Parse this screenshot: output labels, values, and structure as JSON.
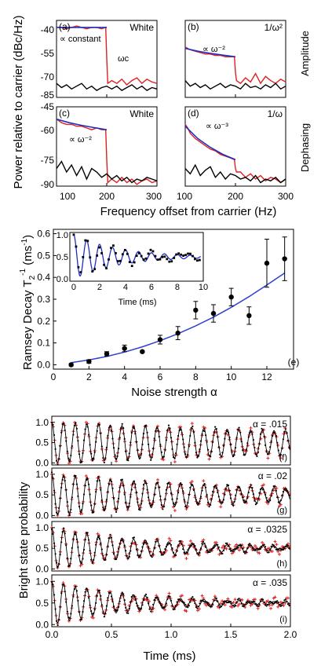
{
  "spectra": {
    "ylabel": "Power relative to carrier (dBc/Hz)",
    "xlabel": "Frequency offset from carrier (Hz)",
    "row_labels": [
      "Amplitude",
      "Dephasing"
    ],
    "x_ticks": [
      "100",
      "200",
      "300"
    ],
    "left_yticks_top": [
      "-40",
      "-55",
      "-70",
      "-85"
    ],
    "left_yticks_bottom": [
      "-45",
      "-60",
      "-75",
      "-90"
    ]
  },
  "ramsey": {
    "ylabel": "Ramsey Decay T",
    "ylabel_sub": "2",
    "ylabel_sup": "-1",
    "ylabel_unit": "(ms",
    "ylabel_unit_sup": "-1",
    "ylabel_close": ")",
    "xlabel": "Noise strength α",
    "x_ticks": [
      "0",
      "2",
      "4",
      "6",
      "8",
      "10",
      "12"
    ],
    "y_ticks": [
      "0.0",
      "0.1",
      "0.2",
      "0.3",
      "0.4",
      "0.5",
      "0.6"
    ],
    "panel_label": "(e)",
    "inset": {
      "xlabel": "Time (ms)",
      "x_ticks": [
        "0",
        "2",
        "4",
        "6",
        "8",
        "10"
      ],
      "y_ticks": [
        "0.0",
        "0.5",
        "1.0"
      ]
    }
  },
  "timeseries": {
    "ylabel": "Bright state probability",
    "xlabel": "Time (ms)",
    "x_ticks": [
      "0.0",
      "0.5",
      "1.0",
      "1.5",
      "2.0"
    ],
    "y_ticks": [
      "0.0",
      "0.5",
      "1.0"
    ]
  },
  "chart_data": [
    {
      "id": "a",
      "type": "line",
      "panel_label": "(a)",
      "title": "White",
      "annotations": [
        "∝ constant",
        "ωc"
      ],
      "xlim": [
        100,
        300
      ],
      "ylim": [
        -90,
        -35
      ],
      "series": [
        {
          "color": "#e02020",
          "x": [
            100,
            110,
            120,
            130,
            140,
            150,
            160,
            170,
            180,
            190,
            198,
            200,
            202,
            210,
            220,
            230,
            240,
            250,
            260,
            270,
            280,
            290,
            300
          ],
          "values": [
            -40,
            -40,
            -41,
            -40,
            -39,
            -40,
            -41,
            -40,
            -40,
            -41,
            -40,
            -62,
            -80,
            -78,
            -80,
            -77,
            -81,
            -78,
            -76,
            -80,
            -77,
            -79,
            -80
          ]
        },
        {
          "color": "#000000",
          "x": [
            100,
            110,
            120,
            130,
            140,
            150,
            160,
            170,
            180,
            190,
            200,
            210,
            220,
            230,
            240,
            250,
            260,
            270,
            280,
            290,
            300
          ],
          "values": [
            -80,
            -83,
            -81,
            -84,
            -82,
            -80,
            -84,
            -82,
            -85,
            -83,
            -82,
            -84,
            -82,
            -85,
            -83,
            -81,
            -84,
            -82,
            -85,
            -83,
            -84
          ]
        },
        {
          "color": "#2030c0",
          "x": [
            100,
            200
          ],
          "values": [
            -40,
            -40
          ]
        }
      ]
    },
    {
      "id": "b",
      "type": "line",
      "panel_label": "(b)",
      "title": "1/ω²",
      "annotations": [
        "∝ ω⁻²"
      ],
      "xlim": [
        100,
        300
      ],
      "ylim": [
        -90,
        -35
      ],
      "series": [
        {
          "color": "#e02020",
          "x": [
            100,
            110,
            120,
            130,
            140,
            150,
            160,
            170,
            180,
            190,
            198,
            200,
            202,
            210,
            220,
            230,
            240,
            250,
            260,
            270,
            280,
            290,
            300
          ],
          "values": [
            -54,
            -56,
            -57,
            -58,
            -59,
            -59,
            -60,
            -60,
            -61,
            -61,
            -61,
            -72,
            -78,
            -80,
            -76,
            -79,
            -73,
            -80,
            -75,
            -78,
            -80,
            -77,
            -79
          ]
        },
        {
          "color": "#000000",
          "x": [
            100,
            110,
            120,
            130,
            140,
            150,
            160,
            170,
            180,
            190,
            200,
            210,
            220,
            230,
            240,
            250,
            260,
            270,
            280,
            290,
            300
          ],
          "values": [
            -78,
            -82,
            -80,
            -83,
            -81,
            -84,
            -82,
            -80,
            -83,
            -81,
            -82,
            -84,
            -80,
            -83,
            -82,
            -84,
            -81,
            -83,
            -80,
            -84,
            -82
          ]
        },
        {
          "color": "#2030c0",
          "x": [
            100,
            125,
            150,
            175,
            200
          ],
          "values": [
            -55,
            -57,
            -58.5,
            -59.8,
            -61
          ]
        }
      ]
    },
    {
      "id": "c",
      "type": "line",
      "panel_label": "(c)",
      "title": "White",
      "annotations": [
        "∝ ω⁻²"
      ],
      "xlim": [
        100,
        300
      ],
      "ylim": [
        -90,
        -45
      ],
      "series": [
        {
          "color": "#e02020",
          "x": [
            100,
            110,
            120,
            130,
            140,
            150,
            160,
            170,
            180,
            190,
            198,
            200,
            202,
            210,
            220,
            230,
            240,
            250,
            260,
            270,
            280,
            290,
            300
          ],
          "values": [
            -52,
            -54,
            -55,
            -55,
            -56,
            -56,
            -57,
            -58,
            -57,
            -58,
            -58,
            -75,
            -88,
            -86,
            -88,
            -85,
            -88,
            -86,
            -89,
            -87,
            -86,
            -88,
            -87
          ]
        },
        {
          "color": "#000000",
          "x": [
            100,
            110,
            120,
            130,
            140,
            150,
            160,
            170,
            180,
            190,
            200,
            210,
            220,
            230,
            240,
            250,
            260,
            270,
            280,
            290,
            300
          ],
          "values": [
            -80,
            -76,
            -82,
            -78,
            -84,
            -79,
            -86,
            -80,
            -82,
            -85,
            -83,
            -86,
            -84,
            -87,
            -85,
            -88,
            -86,
            -87,
            -85,
            -86,
            -87
          ]
        },
        {
          "color": "#2030c0",
          "x": [
            100,
            125,
            150,
            175,
            200
          ],
          "values": [
            -52,
            -54,
            -55.5,
            -56.8,
            -58
          ]
        }
      ]
    },
    {
      "id": "d",
      "type": "line",
      "panel_label": "(d)",
      "title": "1/ω",
      "annotations": [
        "∝ ω⁻³"
      ],
      "xlim": [
        100,
        300
      ],
      "ylim": [
        -90,
        -45
      ],
      "series": [
        {
          "color": "#e02020",
          "x": [
            100,
            105,
            110,
            120,
            130,
            140,
            150,
            160,
            170,
            180,
            190,
            198,
            200,
            202,
            210,
            220,
            230,
            240,
            250,
            260,
            270,
            280,
            290,
            300
          ],
          "values": [
            -55,
            -57,
            -60,
            -63,
            -65,
            -67,
            -69,
            -70,
            -72,
            -73,
            -74,
            -75,
            -80,
            -82,
            -82,
            -85,
            -83,
            -86,
            -84,
            -87,
            -85,
            -86,
            -88,
            -86
          ]
        },
        {
          "color": "#000000",
          "x": [
            100,
            110,
            120,
            130,
            140,
            150,
            160,
            170,
            180,
            190,
            200,
            210,
            220,
            230,
            240,
            250,
            260,
            270,
            280,
            290,
            300
          ],
          "values": [
            -80,
            -83,
            -78,
            -84,
            -81,
            -79,
            -85,
            -82,
            -86,
            -83,
            -84,
            -86,
            -85,
            -87,
            -84,
            -88,
            -86,
            -87,
            -85,
            -88,
            -86
          ]
        },
        {
          "color": "#2030c0",
          "x": [
            100,
            125,
            150,
            175,
            200
          ],
          "values": [
            -56,
            -63,
            -68,
            -72,
            -75
          ]
        }
      ]
    },
    {
      "id": "e",
      "type": "scatter",
      "panel_label": "(e)",
      "xlim": [
        0,
        13.5
      ],
      "ylim": [
        -0.02,
        0.62
      ],
      "points": {
        "x": [
          1,
          2,
          3,
          4,
          5,
          6,
          7,
          8,
          9,
          10,
          11,
          12,
          13
        ],
        "y": [
          0.0,
          0.015,
          0.05,
          0.075,
          0.06,
          0.115,
          0.145,
          0.25,
          0.235,
          0.31,
          0.225,
          0.465,
          0.485
        ],
        "err": [
          0.005,
          0.008,
          0.01,
          0.015,
          0.005,
          0.02,
          0.03,
          0.04,
          0.04,
          0.04,
          0.04,
          0.11,
          0.1
        ]
      },
      "fit": {
        "color": "#3040d0",
        "x": [
          1,
          2,
          3,
          4,
          5,
          6,
          7,
          8,
          9,
          10,
          11,
          12,
          13
        ],
        "y": [
          0.01,
          0.022,
          0.038,
          0.058,
          0.082,
          0.11,
          0.142,
          0.178,
          0.218,
          0.263,
          0.312,
          0.365,
          0.42
        ]
      }
    },
    {
      "id": "e-inset",
      "type": "scatter",
      "xlabel": "Time (ms)",
      "xlim": [
        -0.3,
        10
      ],
      "ylim": [
        -0.05,
        1.05
      ],
      "signal": {
        "amp": 0.5,
        "freq_per_ms": 1.0,
        "decay_ms": 3.5,
        "tmax": 9.8,
        "offset": 0.5
      }
    },
    {
      "id": "f",
      "type": "scatter",
      "panel_label": "(f)",
      "legend": "α = .015",
      "xlim": [
        0,
        2
      ],
      "ylim": [
        -0.05,
        1.15
      ],
      "signal": {
        "freq_per_ms": 10.2,
        "decay_ms": 3.6
      }
    },
    {
      "id": "g",
      "type": "scatter",
      "panel_label": "(g)",
      "legend": "α = .02",
      "xlim": [
        0,
        2
      ],
      "ylim": [
        -0.05,
        1.15
      ],
      "signal": {
        "freq_per_ms": 10.2,
        "decay_ms": 1.8
      }
    },
    {
      "id": "h",
      "type": "scatter",
      "panel_label": "(h)",
      "legend": "α = .0325",
      "xlim": [
        0,
        2
      ],
      "ylim": [
        -0.05,
        1.15
      ],
      "signal": {
        "freq_per_ms": 10.2,
        "decay_ms": 0.85
      }
    },
    {
      "id": "i",
      "type": "scatter",
      "panel_label": "(i)",
      "legend": "α = .035",
      "xlim": [
        0,
        2
      ],
      "ylim": [
        -0.05,
        1.15
      ],
      "signal": {
        "freq_per_ms": 10.2,
        "decay_ms": 0.7
      }
    }
  ]
}
